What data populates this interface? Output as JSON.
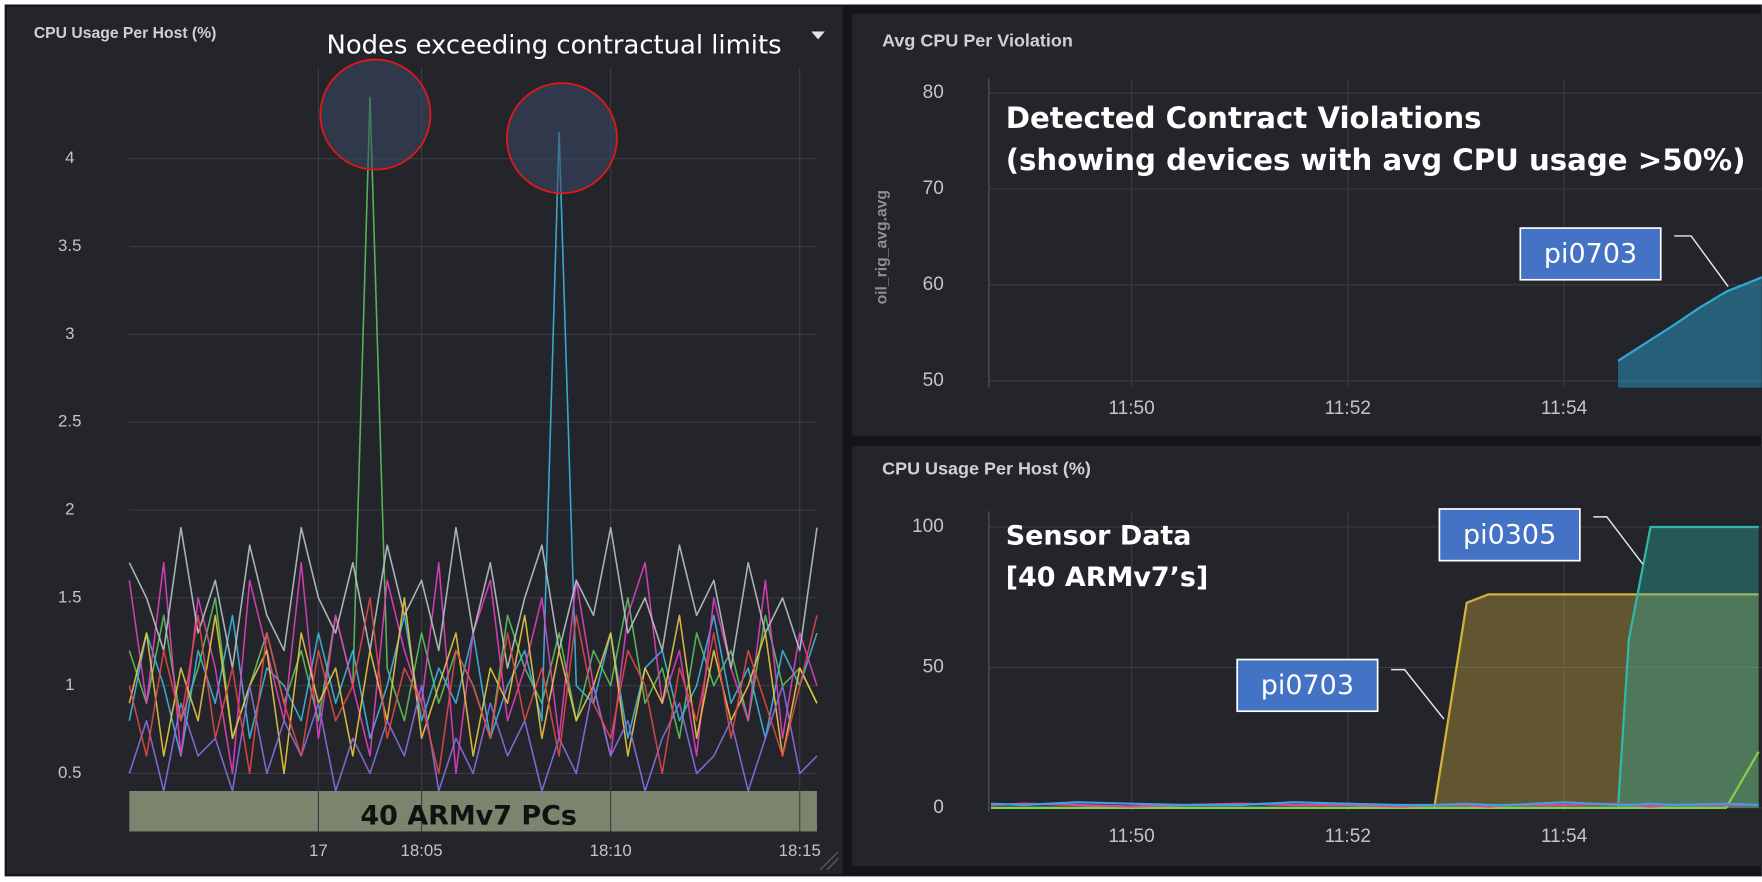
{
  "chart_data": [
    {
      "type": "line",
      "title": "CPU Usage Per Host (%)",
      "annotations": [
        "Nodes exceeding contractual limits",
        "40 ARMv7 PCs"
      ],
      "categories": [
        null,
        null,
        null,
        null,
        null,
        null,
        null,
        null,
        null,
        null,
        null,
        "17",
        null,
        null,
        null,
        null,
        null,
        "18:05",
        null,
        null,
        null,
        null,
        null,
        null,
        null,
        null,
        null,
        null,
        "18:10",
        null,
        null,
        null,
        null,
        null,
        null,
        null,
        null,
        null,
        null,
        "18:15",
        null
      ],
      "ylim": [
        0.17,
        4.52
      ],
      "yticks": [
        0.5,
        1,
        1.5,
        2,
        2.5,
        3,
        3.5,
        4
      ],
      "grid": true,
      "series": [
        {
          "color": "#5cc45c",
          "values": [
            1.2,
            0.9,
            1.4,
            0.8,
            1.1,
            1.5,
            0.7,
            1.0,
            1.3,
            0.9,
            1.2,
            0.8,
            1.4,
            1.0,
            4.35,
            1.1,
            0.8,
            1.3,
            0.9,
            1.2,
            1.0,
            0.7,
            1.4,
            1.1,
            0.9,
            1.3,
            0.8,
            1.2,
            1.0,
            1.5,
            0.9,
            1.1,
            0.7,
            1.3,
            1.0,
            1.2,
            0.8,
            1.4,
            1.0,
            1.1,
            0.9
          ]
        },
        {
          "color": "#3fb6e0",
          "values": [
            0.8,
            1.3,
            1.0,
            0.6,
            1.2,
            0.9,
            1.4,
            0.7,
            1.1,
            1.0,
            0.8,
            1.3,
            0.9,
            1.2,
            0.7,
            1.0,
            1.4,
            0.8,
            1.1,
            0.9,
            1.3,
            0.7,
            1.0,
            1.2,
            0.8,
            4.15,
            1.0,
            0.9,
            1.3,
            0.7,
            1.1,
            1.2,
            0.8,
            1.0,
            1.4,
            0.9,
            1.1,
            0.7,
            1.2,
            1.0,
            1.3
          ]
        },
        {
          "color": "#e040c0",
          "values": [
            1.6,
            0.9,
            1.7,
            0.6,
            1.5,
            1.1,
            0.5,
            1.6,
            1.2,
            0.8,
            1.7,
            0.7,
            1.4,
            1.0,
            0.6,
            1.6,
            1.2,
            0.9,
            1.7,
            0.5,
            1.3,
            1.6,
            0.8,
            1.1,
            1.5,
            0.7,
            1.6,
            1.0,
            0.6,
            1.4,
            1.7,
            0.9,
            1.2,
            0.6,
            1.5,
            1.1,
            0.8,
            1.6,
            0.7,
            1.3,
            1.0
          ]
        },
        {
          "color": "#b8c4c4",
          "values": [
            1.7,
            1.5,
            1.2,
            1.9,
            1.3,
            1.6,
            1.1,
            1.8,
            1.4,
            1.2,
            1.9,
            1.5,
            1.3,
            1.7,
            1.2,
            1.8,
            1.4,
            1.6,
            1.2,
            1.9,
            1.3,
            1.7,
            1.1,
            1.5,
            1.8,
            1.2,
            1.6,
            1.4,
            1.9,
            1.3,
            1.5,
            1.2,
            1.8,
            1.4,
            1.6,
            1.1,
            1.7,
            1.3,
            1.5,
            1.2,
            1.9
          ]
        },
        {
          "color": "#e8c840",
          "values": [
            0.9,
            1.3,
            0.6,
            1.1,
            0.8,
            1.4,
            0.7,
            1.0,
            1.2,
            0.5,
            1.3,
            0.9,
            1.1,
            0.6,
            1.2,
            0.8,
            1.5,
            0.7,
            1.0,
            1.3,
            0.6,
            1.1,
            0.9,
            1.4,
            0.7,
            1.2,
            0.8,
            1.0,
            1.3,
            0.6,
            1.1,
            0.9,
            1.4,
            0.7,
            1.2,
            0.8,
            1.0,
            1.3,
            0.6,
            1.1,
            0.9
          ]
        },
        {
          "color": "#8a70e0",
          "values": [
            0.5,
            0.8,
            0.4,
            0.9,
            0.6,
            0.7,
            0.4,
            1.0,
            0.5,
            0.8,
            0.6,
            0.9,
            0.4,
            0.7,
            0.5,
            0.8,
            0.6,
            1.0,
            0.4,
            0.7,
            0.5,
            0.9,
            0.6,
            0.8,
            0.4,
            0.7,
            0.5,
            1.0,
            0.6,
            0.8,
            0.4,
            0.7,
            0.9,
            0.5,
            0.6,
            0.8,
            0.4,
            0.7,
            1.0,
            0.5,
            0.6
          ]
        },
        {
          "color": "#e04848",
          "values": [
            1.0,
            0.6,
            1.2,
            0.8,
            1.4,
            0.7,
            1.1,
            0.5,
            1.3,
            0.9,
            0.6,
            1.2,
            0.8,
            1.0,
            1.5,
            0.7,
            1.1,
            0.9,
            0.5,
            1.2,
            1.0,
            0.7,
            1.3,
            0.8,
            1.1,
            0.6,
            1.4,
            0.9,
            0.7,
            1.2,
            1.0,
            0.5,
            1.1,
            0.8,
            1.3,
            0.7,
            1.2,
            0.9,
            0.6,
            1.0,
            1.4
          ]
        }
      ]
    },
    {
      "type": "area",
      "title": "Avg CPU Per Violation",
      "y_label": "oil_rig_avg.avg",
      "annotations": [
        "Detected Contract Violations",
        "(showing devices with avg CPU usage >50%)"
      ],
      "callouts": [
        "pi0703"
      ],
      "x": [
        714.5,
        714.75,
        715,
        715.25,
        715.5,
        715.83
      ],
      "xlim": [
        708.68,
        715.83
      ],
      "xticks": [
        {
          "value": 710,
          "label": "11:50"
        },
        {
          "value": 712,
          "label": "11:52"
        },
        {
          "value": 714,
          "label": "11:54"
        }
      ],
      "ylim": [
        49.3,
        81.5
      ],
      "yticks": [
        50,
        60,
        70,
        80
      ],
      "grid": true,
      "series": [
        {
          "color": "#2fa7d8",
          "values": [
            52.1,
            53.9,
            55.7,
            57.6,
            59.3,
            60.8
          ]
        }
      ]
    },
    {
      "type": "line",
      "title": "CPU Usage Per Host (%)",
      "annotations": [
        "Sensor Data",
        "[40 ARMv7’s]"
      ],
      "callouts": [
        "pi0305",
        "pi0703"
      ],
      "x": [
        708.7,
        709,
        709.5,
        710,
        710.5,
        711,
        711.5,
        712,
        712.5,
        712.8,
        713.1,
        713.3,
        713.5,
        714,
        714.5,
        714.6,
        714.8,
        715,
        715.5,
        715.8
      ],
      "xlim": [
        708.68,
        715.83
      ],
      "xticks": [
        {
          "value": 710,
          "label": "11:50"
        },
        {
          "value": 712,
          "label": "11:52"
        },
        {
          "value": 714,
          "label": "11:54"
        }
      ],
      "ylim": [
        -1.2,
        105.6
      ],
      "yticks": [
        0,
        50,
        100
      ],
      "grid": true,
      "series": [
        {
          "color": "#d6b23a",
          "area": true,
          "values": [
            0,
            0,
            0,
            0,
            0,
            0,
            0,
            0,
            0,
            0,
            73,
            76,
            76,
            76,
            76,
            76,
            76,
            76,
            76,
            76
          ]
        },
        {
          "color": "#2fb8a8",
          "area": true,
          "values": [
            0,
            0,
            0,
            0,
            0,
            0,
            0,
            0,
            0,
            0,
            0,
            0,
            0,
            0,
            0,
            60,
            100,
            100,
            100,
            100
          ]
        },
        {
          "color": "#7fd14a",
          "values": [
            0,
            0,
            0,
            0,
            0,
            0,
            0,
            0,
            0,
            0,
            0,
            0,
            0,
            0,
            0,
            0,
            0,
            0,
            0,
            20
          ]
        },
        {
          "color": "#e040a0",
          "values": [
            1,
            1.5,
            1,
            0.5,
            1,
            1.5,
            1,
            1,
            0.5,
            1,
            1,
            0.5,
            1,
            1,
            1.5,
            1,
            0.5,
            1,
            1,
            1
          ]
        },
        {
          "color": "#3fa0e0",
          "values": [
            1.5,
            1,
            2,
            1.5,
            1,
            1,
            2,
            1.5,
            1,
            1,
            1.5,
            1,
            1,
            2,
            1,
            1,
            1.5,
            1,
            1.5,
            1
          ]
        }
      ]
    }
  ]
}
